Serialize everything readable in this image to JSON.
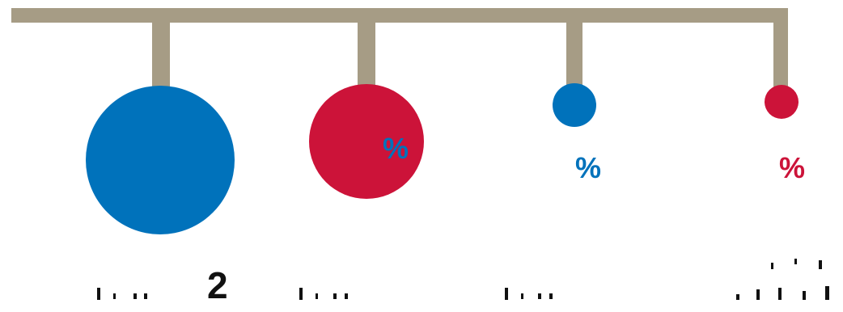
{
  "colors": {
    "hanger": "#a69c85",
    "blue": "#0072bb",
    "red": "#cc1339",
    "text": "#111111"
  },
  "circles": [
    {
      "color": "blue",
      "pct_text": "",
      "value_text": "2"
    },
    {
      "color": "red",
      "pct_text": "%",
      "value_text": ""
    },
    {
      "color": "blue",
      "pct_text": "%",
      "value_text": ""
    },
    {
      "color": "red",
      "pct_text": "%",
      "value_text": ""
    }
  ]
}
